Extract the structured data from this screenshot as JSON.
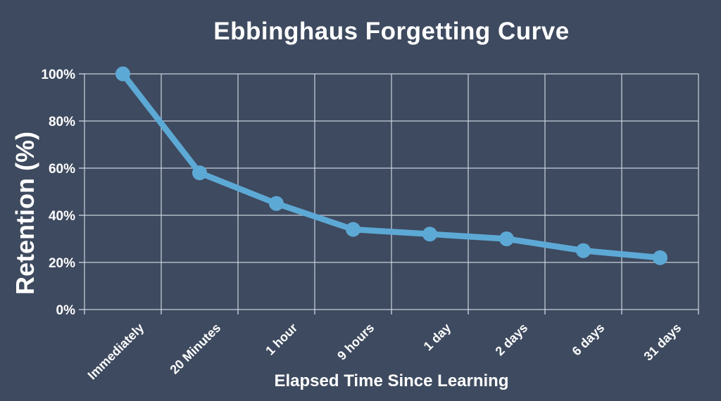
{
  "chart_data": {
    "type": "line",
    "title": "Ebbinghaus Forgetting Curve",
    "xlabel": "Elapsed Time Since Learning",
    "ylabel": "Retention (%)",
    "categories": [
      "Immediately",
      "20 Minutes",
      "1 hour",
      "9 hours",
      "1 day",
      "2 days",
      "6 days",
      "31 days"
    ],
    "series": [
      {
        "name": "Retention",
        "values": [
          100,
          58,
          45,
          34,
          32,
          30,
          25,
          22
        ]
      }
    ],
    "y_ticks": [
      {
        "value": 0,
        "label": "0%"
      },
      {
        "value": 20,
        "label": "20%"
      },
      {
        "value": 40,
        "label": "40%"
      },
      {
        "value": 60,
        "label": "60%"
      },
      {
        "value": 80,
        "label": "80%"
      },
      {
        "value": 100,
        "label": "100%"
      }
    ],
    "ylim": [
      0,
      100
    ],
    "grid": "on",
    "legend": "none",
    "x_tick_rotation": -45,
    "marker": "circle",
    "colors": {
      "background": "#3e4a5f",
      "line": "#5da9d6",
      "marker": "#5da9d6",
      "grid": "#ccd4e0",
      "text": "#ffffff"
    }
  }
}
